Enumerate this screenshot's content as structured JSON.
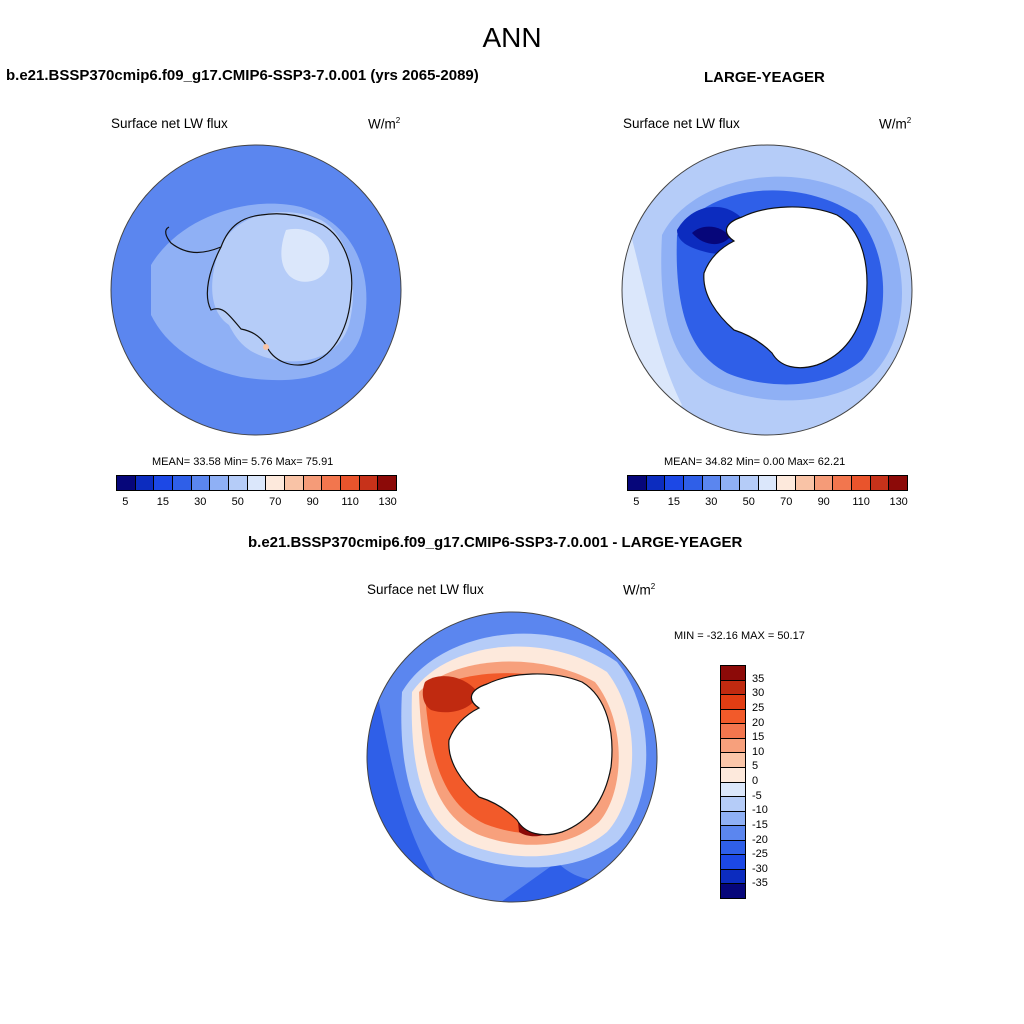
{
  "title": "ANN",
  "panels": [
    {
      "case_title": "b.e21.BSSP370cmip6.f09_g17.CMIP6-SSP3-7.0.001 (yrs 2065-2089)",
      "variable": "Surface net LW flux",
      "units": "W/m",
      "units_exp": "2",
      "stats": "MEAN=  33.58  Min=   5.76  Max=  75.91",
      "colorbar_ticks": [
        "5",
        "15",
        "30",
        "50",
        "70",
        "90",
        "110",
        "130"
      ]
    },
    {
      "case_title": "LARGE-YEAGER",
      "variable": "Surface net LW flux",
      "units": "W/m",
      "units_exp": "2",
      "stats": "MEAN=  34.82  Min=   0.00  Max=  62.21",
      "colorbar_ticks": [
        "5",
        "15",
        "30",
        "50",
        "70",
        "90",
        "110",
        "130"
      ]
    }
  ],
  "diff_panel": {
    "case_title": "b.e21.BSSP370cmip6.f09_g17.CMIP6-SSP3-7.0.001 - LARGE-YEAGER",
    "variable": "Surface net LW flux",
    "units": "W/m",
    "units_exp": "2",
    "stats": "MIN = -32.16 MAX =  50.17",
    "colorbar_ticks": [
      "35",
      "30",
      "25",
      "20",
      "15",
      "10",
      "5",
      "0",
      "-5",
      "-10",
      "-15",
      "-20",
      "-25",
      "-30",
      "-35"
    ]
  },
  "colors": {
    "abs_scale": [
      "#06067a",
      "#0c2cbf",
      "#1c48e6",
      "#2f5fe8",
      "#5b86ef",
      "#8fb0f5",
      "#b5ccf8",
      "#dbe7fb",
      "#fde9dc",
      "#f9c3a6",
      "#f59b78",
      "#f2764e",
      "#e9542c",
      "#c7321a",
      "#8c0a08"
    ],
    "diff_scale": [
      "#8c0a08",
      "#c02a10",
      "#e23d13",
      "#f25a2a",
      "#f3764e",
      "#f7a07c",
      "#fbc6a9",
      "#fde9dc",
      "#dbe7fb",
      "#b5ccf8",
      "#8fb0f5",
      "#5b86ef",
      "#2f5fe8",
      "#1c48e6",
      "#0c2cbf",
      "#06067a"
    ]
  }
}
